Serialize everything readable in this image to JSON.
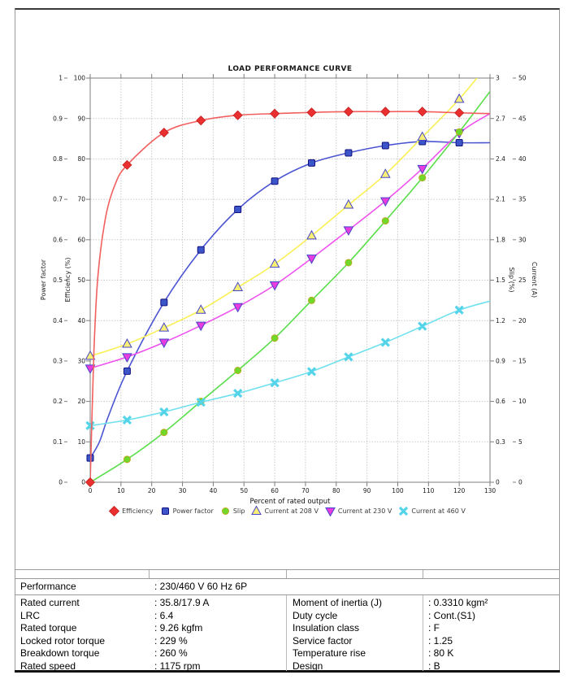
{
  "chart_data": {
    "type": "line",
    "title": "LOAD PERFORMANCE CURVE",
    "xlabel": "Percent of rated output",
    "grid": true,
    "legend_position": "bottom",
    "x_axis": {
      "min": 0,
      "max": 130,
      "tick_step": 10
    },
    "y_axes": [
      {
        "id": "pf",
        "label": "Power factor",
        "side": "left",
        "min": 0,
        "max": 1,
        "tick_step": 0.1
      },
      {
        "id": "eff",
        "label": "Efficiency (%)",
        "side": "left",
        "min": 0,
        "max": 100,
        "tick_step": 10
      },
      {
        "id": "slip",
        "label": "Slip (%)",
        "side": "right",
        "min": 0,
        "max": 3,
        "tick_step": 0.3
      },
      {
        "id": "cur",
        "label": "Current (A)",
        "side": "right",
        "min": 0,
        "max": 50,
        "tick_step": 5
      }
    ],
    "x": [
      0,
      12,
      24,
      36,
      48,
      60,
      72,
      84,
      96,
      108,
      120
    ],
    "series": [
      {
        "name": "Efficiency",
        "axis": "eff",
        "marker": "diamond",
        "z": 6,
        "line_color": "#f25f5f",
        "marker_fill": "#e92f2f",
        "marker_stroke": "#c41f1f",
        "values": [
          0,
          78.5,
          86.5,
          89.5,
          90.8,
          91.2,
          91.5,
          91.7,
          91.7,
          91.7,
          91.4
        ],
        "curve_extra": [
          [
            1.2,
            32
          ],
          [
            2.5,
            51
          ],
          [
            5,
            65.5
          ],
          [
            8,
            73.5
          ],
          [
            130,
            91.2
          ]
        ]
      },
      {
        "name": "Power factor",
        "axis": "pf",
        "marker": "square",
        "z": 1,
        "line_color": "#4b55d2",
        "marker_fill": "#3c55c8",
        "marker_stroke": "#101080",
        "values": [
          0.06,
          0.275,
          0.445,
          0.575,
          0.675,
          0.745,
          0.79,
          0.815,
          0.833,
          0.843,
          0.84
        ],
        "curve_extra": [
          [
            3,
            0.1
          ],
          [
            6,
            0.165
          ],
          [
            130,
            0.84
          ]
        ]
      },
      {
        "name": "Slip",
        "axis": "slip",
        "marker": "circle",
        "z": 4,
        "line_color": "#5ade4b",
        "marker_fill": "#6ed929",
        "marker_stroke": "#b9a81f",
        "values": [
          0,
          0.17,
          0.37,
          0.6,
          0.83,
          1.07,
          1.35,
          1.63,
          1.94,
          2.26,
          2.6
        ],
        "curve_extra": [
          [
            130,
            2.9
          ]
        ]
      },
      {
        "name": "Current at 208 V",
        "axis": "cur",
        "marker": "triangle-up",
        "z": 2,
        "line_color": "#faf054",
        "marker_fill": "#f7ef76",
        "marker_stroke": "#4545cb",
        "values": [
          15.6,
          17.1,
          19.1,
          21.3,
          24.1,
          27.0,
          30.5,
          34.3,
          38.1,
          42.7,
          47.4
        ],
        "curve_extra": [
          [
            130,
            52
          ]
        ]
      },
      {
        "name": "Current at 230 V",
        "axis": "cur",
        "marker": "triangle-down",
        "z": 3,
        "line_color": "#ef52ee",
        "marker_fill": "#e83ce0",
        "marker_stroke": "#4545cb",
        "values": [
          14.1,
          15.5,
          17.3,
          19.4,
          21.7,
          24.4,
          27.7,
          31.2,
          34.8,
          38.8,
          43.2
        ],
        "curve_extra": [
          [
            130,
            45.6
          ]
        ]
      },
      {
        "name": "Current at 460 V",
        "axis": "cur",
        "marker": "x",
        "z": 5,
        "line_color": "#6fe0ee",
        "marker_fill": "#55d4e9",
        "marker_stroke": "#55d4e9",
        "values": [
          7.0,
          7.7,
          8.7,
          9.9,
          11.0,
          12.3,
          13.7,
          15.5,
          17.3,
          19.3,
          21.3
        ],
        "curve_extra": [
          [
            130,
            22.4
          ]
        ]
      }
    ]
  },
  "table": {
    "performance_row": {
      "label": "Performance",
      "value": ": 230/460 V 60 Hz 6P"
    },
    "left_rows": [
      {
        "label": "Rated current",
        "value": ": 35.8/17.9 A"
      },
      {
        "label": "LRC",
        "value": ": 6.4"
      },
      {
        "label": "Rated torque",
        "value": ": 9.26 kgfm"
      },
      {
        "label": "Locked rotor torque",
        "value": ": 229 %"
      },
      {
        "label": "Breakdown torque",
        "value": ": 260 %"
      },
      {
        "label": "Rated speed",
        "value": ": 1175 rpm"
      }
    ],
    "right_rows": [
      {
        "label": "Moment of inertia (J)",
        "value": ": 0.3310 kgm²"
      },
      {
        "label": "Duty cycle",
        "value": ": Cont.(S1)"
      },
      {
        "label": "Insulation class",
        "value": ": F"
      },
      {
        "label": "Service factor",
        "value": ": 1.25"
      },
      {
        "label": "Temperature rise",
        "value": ": 80 K"
      },
      {
        "label": "Design",
        "value": ": B"
      }
    ]
  }
}
